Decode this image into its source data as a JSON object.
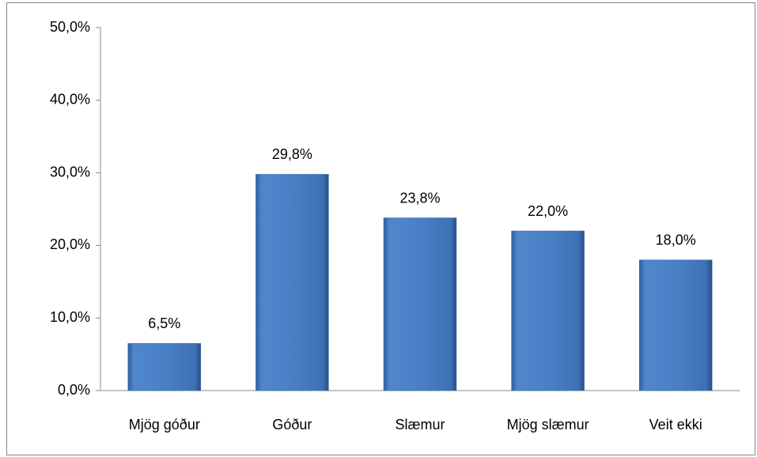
{
  "chart_data": {
    "type": "bar",
    "categories": [
      "Mjög góður",
      "Góður",
      "Slæmur",
      "Mjög slæmur",
      "Veit ekki"
    ],
    "values": [
      6.5,
      29.8,
      23.8,
      22.0,
      18.0
    ],
    "value_labels": [
      "6,5%",
      "29,8%",
      "23,8%",
      "22,0%",
      "18,0%"
    ],
    "color": "#4a7ebb",
    "ylim": [
      0,
      50
    ],
    "yticks": [
      {
        "value": 0,
        "label": "0,0%"
      },
      {
        "value": 10,
        "label": "10,0%"
      },
      {
        "value": 20,
        "label": "20,0%"
      },
      {
        "value": 30,
        "label": "30,0%"
      },
      {
        "value": 40,
        "label": "40,0%"
      },
      {
        "value": 50,
        "label": "50,0%"
      }
    ],
    "grid": false
  }
}
